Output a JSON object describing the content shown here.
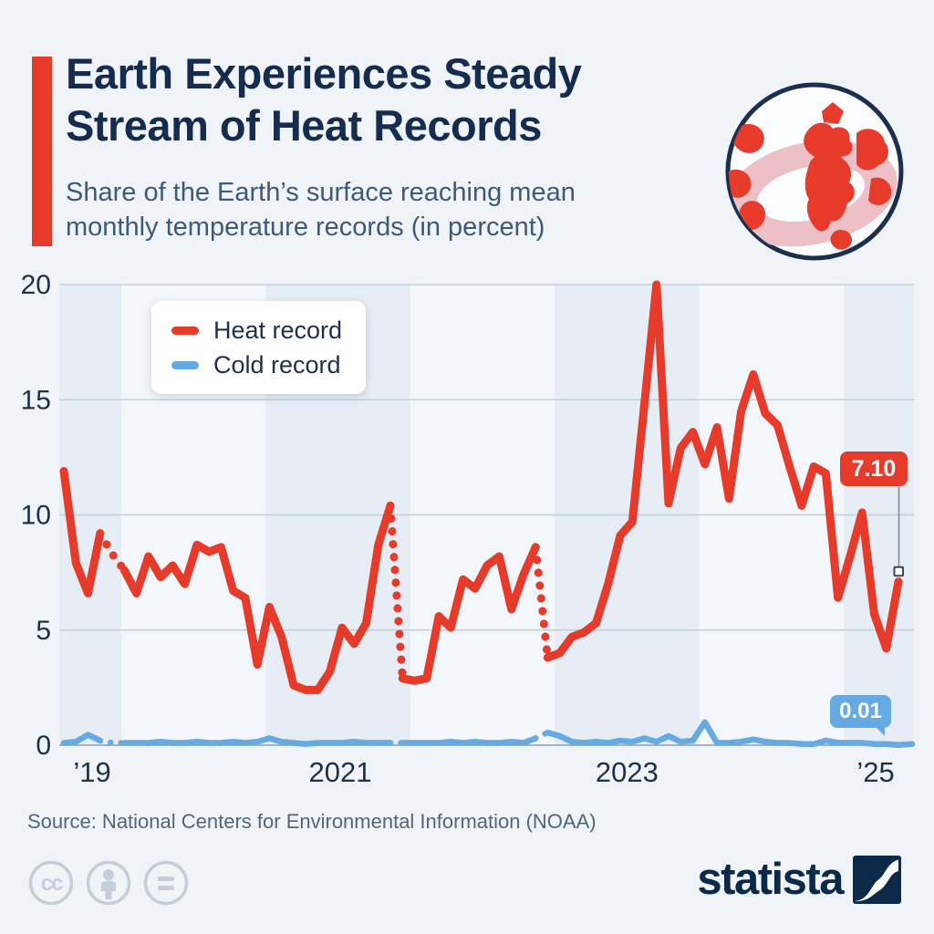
{
  "header": {
    "title_line1": "Earth Experiences Steady",
    "title_line2": "Stream of Heat Records",
    "subtitle_line1": "Share of the Earth’s surface reaching mean",
    "subtitle_line2": "monthly temperature records (in percent)"
  },
  "legend": {
    "items": [
      {
        "label": "Heat record",
        "color": "#e63a2b"
      },
      {
        "label": "Cold record",
        "color": "#65aae3"
      }
    ]
  },
  "annotations": {
    "heat_value_label": "7.10",
    "cold_value_label": "0.01"
  },
  "source": {
    "text": "Source: National Centers for Environmental Information (NOAA)"
  },
  "footer": {
    "brand": "statista",
    "license_icons": [
      "cc-icon",
      "attribution-person-icon",
      "equals-icon"
    ]
  },
  "colors": {
    "background": "#f0f4f8",
    "accent_red": "#e63a2b",
    "line_blue": "#65aae3",
    "title_navy": "#152c4e",
    "subtitle_slate": "#3f5a77",
    "band_dark": "#e7edf4",
    "band_light": "#f3f6fa",
    "grid": "#c4cedb",
    "zero_line": "#8f9dab",
    "tick_text": "#1e3146",
    "footer_icon_gray": "#c5ced8",
    "brand_navy": "#0d2949",
    "globe_pink": "#edbfc6",
    "marker_outline": "#42474d"
  },
  "chart_data": {
    "type": "line",
    "title": "Earth Experiences Steady Stream of Heat Records",
    "subtitle": "Share of the Earth’s surface reaching mean monthly temperature records (in percent)",
    "x_unit": "month",
    "x_tick_labels": [
      "’19",
      "2021",
      "2023",
      "’25"
    ],
    "y_ticks": [
      0,
      5,
      10,
      15,
      20
    ],
    "ylim": [
      0,
      20
    ],
    "grid": true,
    "legend_position": "top-left",
    "alternating_year_bands": true,
    "dotted_segments_note": "point-index ranges drawn dotted (data gaps)",
    "dotted_segments": [
      [
        3,
        5
      ],
      [
        27,
        28
      ],
      [
        39,
        40
      ]
    ],
    "series": [
      {
        "name": "Heat record",
        "color": "#e63a2b",
        "last_value_label": "7.10",
        "values": [
          11.9,
          7.9,
          6.6,
          9.2,
          8.3,
          7.6,
          6.6,
          8.2,
          7.3,
          7.8,
          7.0,
          8.7,
          8.4,
          8.6,
          6.7,
          6.4,
          3.5,
          6.0,
          4.7,
          2.6,
          2.4,
          2.4,
          3.2,
          5.1,
          4.4,
          5.3,
          8.7,
          10.4,
          2.9,
          2.8,
          2.9,
          5.6,
          5.1,
          7.2,
          6.8,
          7.8,
          8.2,
          5.9,
          7.4,
          8.6,
          3.8,
          4.0,
          4.7,
          4.9,
          5.3,
          7.0,
          9.1,
          9.7,
          14.8,
          20.0,
          10.5,
          12.9,
          13.6,
          12.2,
          13.8,
          10.7,
          14.5,
          16.1,
          14.4,
          13.9,
          12.1,
          10.4,
          12.1,
          11.8,
          6.4,
          8.2,
          10.1,
          5.7,
          4.2,
          7.1
        ]
      },
      {
        "name": "Cold record",
        "color": "#65aae3",
        "last_value_label": "0.01",
        "values": [
          0.1,
          0.15,
          0.45,
          0.2,
          0.1,
          0.1,
          0.1,
          0.1,
          0.15,
          0.1,
          0.1,
          0.15,
          0.1,
          0.1,
          0.15,
          0.1,
          0.15,
          0.3,
          0.15,
          0.1,
          0.05,
          0.1,
          0.1,
          0.1,
          0.15,
          0.1,
          0.1,
          0.1,
          0.1,
          0.1,
          0.1,
          0.1,
          0.15,
          0.1,
          0.15,
          0.1,
          0.1,
          0.15,
          0.1,
          0.3,
          0.55,
          0.4,
          0.15,
          0.1,
          0.15,
          0.1,
          0.2,
          0.15,
          0.3,
          0.15,
          0.4,
          0.15,
          0.2,
          1.0,
          0.1,
          0.1,
          0.15,
          0.25,
          0.15,
          0.1,
          0.1,
          0.05,
          0.05,
          0.2,
          0.1,
          0.1,
          0.1,
          0.05,
          0.05,
          0.01
        ]
      }
    ]
  }
}
